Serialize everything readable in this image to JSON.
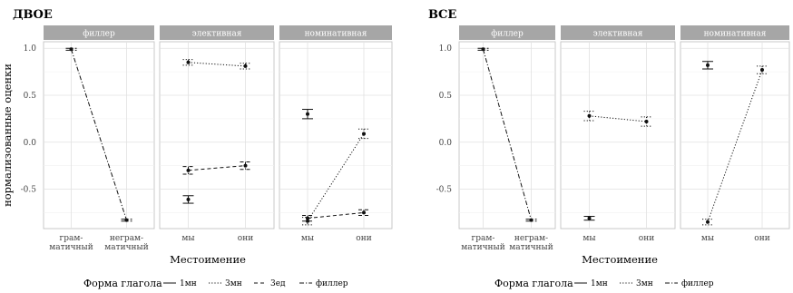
{
  "chart_data": [
    {
      "type": "line",
      "title": "ДВОЕ",
      "ylabel": "нормализованные оценки",
      "xlabel": "Местоимение",
      "ylim": [
        -0.92,
        1.07
      ],
      "yticks": [
        -0.5,
        0.0,
        0.5,
        1.0
      ],
      "ytick_labels": [
        "-0.5",
        "0.0",
        "0.5",
        "1.0"
      ],
      "legend": {
        "title": "Форма глагола",
        "items": [
          {
            "key": "1mn",
            "label": "1мн",
            "style": "solid"
          },
          {
            "key": "3mn",
            "label": "3мн",
            "style": "dotted"
          },
          {
            "key": "3ed",
            "label": "3ед",
            "style": "dashed"
          },
          {
            "key": "filler",
            "label": "филлер",
            "style": "dashdot"
          }
        ]
      },
      "panels": [
        {
          "strip": "филлер",
          "categories": [
            [
              "грам-",
              "матичный"
            ],
            [
              "неграм-",
              "матичный"
            ]
          ],
          "series": [
            {
              "key": "filler",
              "points": [
                [
                  0,
                  0.99
                ],
                [
                  1,
                  -0.83
                ]
              ],
              "err": [
                0.01,
                0.01
              ]
            }
          ]
        },
        {
          "strip": "элективная",
          "categories": [
            [
              "мы"
            ],
            [
              "они"
            ]
          ],
          "series": [
            {
              "key": "3mn",
              "points": [
                [
                  0,
                  0.85
                ],
                [
                  1,
                  0.81
                ]
              ],
              "err": [
                0.03,
                0.03
              ]
            },
            {
              "key": "3ed",
              "points": [
                [
                  0,
                  -0.3
                ],
                [
                  1,
                  -0.25
                ]
              ],
              "err": [
                0.04,
                0.04
              ]
            },
            {
              "key": "1mn",
              "points": [
                [
                  0,
                  -0.61
                ]
              ],
              "err": [
                0.04
              ]
            }
          ]
        },
        {
          "strip": "номинативная",
          "categories": [
            [
              "мы"
            ],
            [
              "они"
            ]
          ],
          "series": [
            {
              "key": "1mn",
              "points": [
                [
                  0,
                  0.3
                ]
              ],
              "err": [
                0.05
              ]
            },
            {
              "key": "3mn",
              "points": [
                [
                  0,
                  -0.84
                ],
                [
                  1,
                  0.09
                ]
              ],
              "err": [
                0.04,
                0.05
              ]
            },
            {
              "key": "3ed",
              "points": [
                [
                  0,
                  -0.81
                ],
                [
                  1,
                  -0.75
                ]
              ],
              "err": [
                0.03,
                0.03
              ]
            }
          ]
        }
      ]
    },
    {
      "type": "line",
      "title": "ВСЕ",
      "ylabel": "",
      "xlabel": "Местоимение",
      "ylim": [
        -0.92,
        1.07
      ],
      "yticks": [
        -0.5,
        0.0,
        0.5,
        1.0
      ],
      "ytick_labels": [
        "-0.5",
        "0.0",
        "0.5",
        "1.0"
      ],
      "legend": {
        "title": "Форма глагола",
        "items": [
          {
            "key": "1mn",
            "label": "1мн",
            "style": "solid"
          },
          {
            "key": "3mn",
            "label": "3мн",
            "style": "dotted"
          },
          {
            "key": "filler",
            "label": "филлер",
            "style": "dashdot"
          }
        ]
      },
      "panels": [
        {
          "strip": "филлер",
          "categories": [
            [
              "грам-",
              "матичный"
            ],
            [
              "неграм-",
              "матичный"
            ]
          ],
          "series": [
            {
              "key": "filler",
              "points": [
                [
                  0,
                  0.99
                ],
                [
                  1,
                  -0.83
                ]
              ],
              "err": [
                0.01,
                0.01
              ]
            }
          ]
        },
        {
          "strip": "элективная",
          "categories": [
            [
              "мы"
            ],
            [
              "они"
            ]
          ],
          "series": [
            {
              "key": "3mn",
              "points": [
                [
                  0,
                  0.28
                ],
                [
                  1,
                  0.22
                ]
              ],
              "err": [
                0.05,
                0.05
              ]
            },
            {
              "key": "1mn",
              "points": [
                [
                  0,
                  -0.81
                ]
              ],
              "err": [
                0.02
              ]
            }
          ]
        },
        {
          "strip": "номинативная",
          "categories": [
            [
              "мы"
            ],
            [
              "они"
            ]
          ],
          "series": [
            {
              "key": "1mn",
              "points": [
                [
                  0,
                  0.82
                ]
              ],
              "err": [
                0.04
              ]
            },
            {
              "key": "3mn",
              "points": [
                [
                  0,
                  -0.85
                ],
                [
                  1,
                  0.77
                ]
              ],
              "err": [
                0.03,
                0.04
              ]
            }
          ]
        }
      ]
    }
  ]
}
